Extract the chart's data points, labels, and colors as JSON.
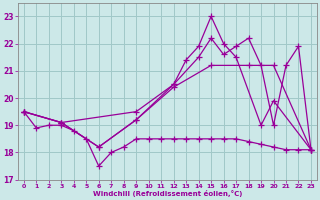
{
  "bg_color": "#cce8e8",
  "grid_color": "#a0c8c8",
  "line_color": "#990099",
  "xlabel": "Windchill (Refroidissement éolien,°C)",
  "xlim": [
    -0.5,
    23.5
  ],
  "ylim": [
    17,
    23.5
  ],
  "yticks": [
    17,
    18,
    19,
    20,
    21,
    22,
    23
  ],
  "xticks": [
    0,
    1,
    2,
    3,
    4,
    5,
    6,
    7,
    8,
    9,
    10,
    11,
    12,
    13,
    14,
    15,
    16,
    17,
    18,
    19,
    20,
    21,
    22,
    23
  ],
  "series": [
    {
      "x": [
        0,
        1,
        2,
        3,
        4,
        5,
        6,
        7,
        8,
        9,
        10,
        11,
        12,
        13,
        14,
        15,
        16,
        17,
        18,
        19,
        20,
        21,
        22,
        23
      ],
      "y": [
        19.5,
        18.9,
        19.0,
        19.0,
        18.8,
        18.5,
        17.5,
        18.0,
        18.2,
        18.5,
        18.5,
        18.5,
        18.5,
        18.5,
        18.5,
        18.5,
        18.5,
        18.5,
        18.4,
        18.3,
        18.2,
        18.1,
        18.1,
        18.1
      ]
    },
    {
      "x": [
        0,
        3,
        6,
        9,
        12,
        15,
        18,
        20,
        23
      ],
      "y": [
        19.5,
        19.1,
        18.2,
        19.2,
        20.4,
        21.2,
        21.2,
        21.2,
        18.1
      ]
    },
    {
      "x": [
        0,
        3,
        9,
        12,
        13,
        14,
        15,
        16,
        17,
        19,
        20,
        23
      ],
      "y": [
        19.5,
        19.1,
        19.5,
        20.5,
        21.4,
        21.9,
        23.0,
        22.0,
        21.5,
        19.0,
        19.9,
        18.1
      ]
    },
    {
      "x": [
        0,
        3,
        6,
        9,
        12,
        14,
        15,
        16,
        17,
        18,
        19,
        20,
        21,
        22,
        23
      ],
      "y": [
        19.5,
        19.1,
        18.2,
        19.2,
        20.5,
        21.5,
        22.2,
        21.6,
        21.9,
        22.2,
        21.2,
        19.0,
        21.2,
        21.9,
        18.1
      ]
    }
  ]
}
